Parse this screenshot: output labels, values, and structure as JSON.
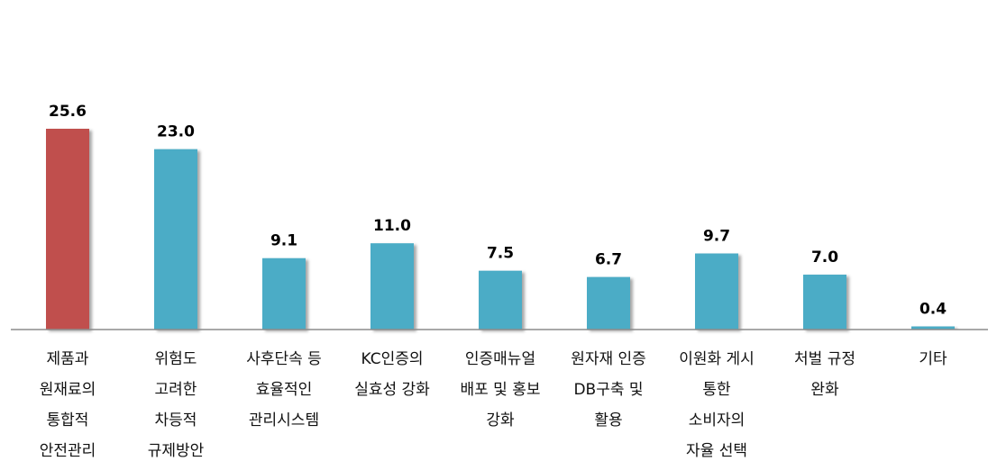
{
  "chart_data": {
    "type": "bar",
    "categories": [
      [
        "제품과",
        "원재료의",
        "통합적",
        "안전관리"
      ],
      [
        "위험도",
        "고려한",
        "차등적",
        "규제방안"
      ],
      [
        "사후단속 등",
        "효율적인",
        "관리시스템"
      ],
      [
        "KC인증의",
        "실효성 강화"
      ],
      [
        "인증매뉴얼",
        "배포 및 홍보",
        "강화"
      ],
      [
        "원자재 인증",
        "DB구축 및",
        "활용"
      ],
      [
        "이원화 게시",
        "통한",
        "소비자의",
        "자율 선택"
      ],
      [
        "처벌 규정",
        "완화"
      ],
      [
        "기타"
      ]
    ],
    "values": [
      25.6,
      23.0,
      9.1,
      11.0,
      7.5,
      6.7,
      9.7,
      7.0,
      0.4
    ],
    "value_labels": [
      "25.6",
      "23.0",
      "9.1",
      "11.0",
      "7.5",
      "6.7",
      "9.7",
      "7.0",
      "0.4"
    ],
    "colors": [
      "#c0504d",
      "#4bacc6",
      "#4bacc6",
      "#4bacc6",
      "#4bacc6",
      "#4bacc6",
      "#4bacc6",
      "#4bacc6",
      "#4bacc6"
    ],
    "ylim": [
      0,
      25.6
    ],
    "grid": false,
    "legend": "none"
  }
}
